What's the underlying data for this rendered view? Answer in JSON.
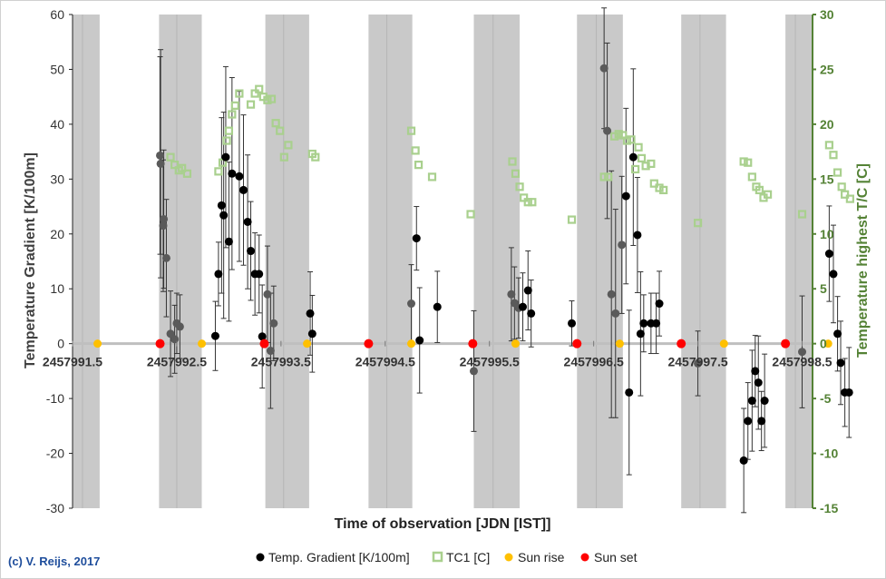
{
  "chart_data": {
    "type": "scatter",
    "title": "",
    "xlabel": "Time of observation [JDN [IST]]",
    "ylabel": "Temperature Gradient  [K/100m]",
    "y2label": "Temperature highest T/C [C]",
    "xlim": [
      2457991.5,
      2457998.6
    ],
    "ylim": [
      -30,
      60
    ],
    "y2lim": [
      -15,
      30
    ],
    "x_ticks": [
      2457991.5,
      2457992.5,
      2457993.5,
      2457994.5,
      2457995.5,
      2457996.5,
      2457997.5,
      2457998.5
    ],
    "x_tick_labels": [
      "2457991.5",
      "2457992.5",
      "2457993.5",
      "2457994.5",
      "2457995.5",
      "2457996.5",
      "2457997.5",
      "2457998.5"
    ],
    "y_ticks": [
      -30,
      -20,
      -10,
      0,
      10,
      20,
      30,
      40,
      50,
      60
    ],
    "y_tick_labels": [
      "-30",
      "-20",
      "-10",
      "0",
      "10",
      "20",
      "30",
      "40",
      "50",
      "60"
    ],
    "y2_ticks": [
      -15,
      -10,
      -5,
      0,
      5,
      10,
      15,
      20,
      25,
      30
    ],
    "y2_tick_labels": [
      "-15",
      "-10",
      "-5",
      "0",
      "5",
      "10",
      "15",
      "20",
      "25",
      "30"
    ],
    "night_bands": [
      [
        2457991.5,
        2457991.76
      ],
      [
        2457992.33,
        2457992.74
      ],
      [
        2457993.35,
        2457993.77
      ],
      [
        2457994.34,
        2457994.76
      ],
      [
        2457995.35,
        2457995.79
      ],
      [
        2457996.34,
        2457996.78
      ],
      [
        2457997.34,
        2457997.77
      ],
      [
        2457998.34,
        2457998.6
      ]
    ],
    "series": [
      {
        "name": "Temp. Gradient [K/100m]",
        "points": [
          {
            "x": 2457992.34,
            "y": 34.3,
            "err": 18
          },
          {
            "x": 2457992.345,
            "y": 32.8,
            "err": 20.8
          },
          {
            "x": 2457992.375,
            "y": 22.7,
            "err": 12.6
          },
          {
            "x": 2457992.37,
            "y": 21.5,
            "err": 12
          },
          {
            "x": 2457992.4,
            "y": 15.6,
            "err": 10.7
          },
          {
            "x": 2457992.44,
            "y": 1.8,
            "err": 7.8
          },
          {
            "x": 2457992.48,
            "y": 0.8,
            "err": 6.2
          },
          {
            "x": 2457992.5,
            "y": 3.7,
            "err": 5.5
          },
          {
            "x": 2457992.53,
            "y": 3.1,
            "err": 5.8
          },
          {
            "x": 2457992.87,
            "y": 1.4,
            "err": 6.3
          },
          {
            "x": 2457992.9,
            "y": 12.7,
            "err": 5.8
          },
          {
            "x": 2457992.93,
            "y": 25.2,
            "err": 16
          },
          {
            "x": 2457992.95,
            "y": 23.4,
            "err": 18.8
          },
          {
            "x": 2457992.97,
            "y": 34,
            "err": 16.5
          },
          {
            "x": 2457993.0,
            "y": 18.6,
            "err": 14.5
          },
          {
            "x": 2457993.03,
            "y": 31,
            "err": 17.5
          },
          {
            "x": 2457993.1,
            "y": 30.5,
            "err": 15.5
          },
          {
            "x": 2457993.14,
            "y": 28,
            "err": 13.7
          },
          {
            "x": 2457993.18,
            "y": 22.2,
            "err": 12.2
          },
          {
            "x": 2457993.21,
            "y": 16.9,
            "err": 9
          },
          {
            "x": 2457993.25,
            "y": 12.7,
            "err": 7.5
          },
          {
            "x": 2457993.29,
            "y": 12.7,
            "err": 7.1
          },
          {
            "x": 2457993.32,
            "y": 1.3,
            "err": 9.4
          },
          {
            "x": 2457993.37,
            "y": 9,
            "err": 8.8
          },
          {
            "x": 2457993.4,
            "y": -1.3,
            "err": 10.5
          },
          {
            "x": 2457993.43,
            "y": 3.7,
            "err": 6.8
          },
          {
            "x": 2457993.78,
            "y": 5.5,
            "err": 7.6
          },
          {
            "x": 2457993.8,
            "y": 1.8,
            "err": 7
          },
          {
            "x": 2457994.75,
            "y": 7.3,
            "err": 7.1
          },
          {
            "x": 2457994.8,
            "y": 19.2,
            "err": 5.8
          },
          {
            "x": 2457994.83,
            "y": 0.6,
            "err": 9.6
          },
          {
            "x": 2457995.0,
            "y": 6.7,
            "err": 6.5
          },
          {
            "x": 2457995.35,
            "y": -5,
            "err": 11
          },
          {
            "x": 2457995.71,
            "y": 9,
            "err": 8.5
          },
          {
            "x": 2457995.74,
            "y": 7.4,
            "err": 6.6
          },
          {
            "x": 2457995.78,
            "y": 6.5,
            "err": 5.5
          },
          {
            "x": 2457995.82,
            "y": 6.7,
            "err": 6.2
          },
          {
            "x": 2457995.87,
            "y": 9.7,
            "err": 7.2
          },
          {
            "x": 2457995.9,
            "y": 5.5,
            "err": 6.1
          },
          {
            "x": 2457996.29,
            "y": 3.7,
            "err": 4.1
          },
          {
            "x": 2457996.6,
            "y": 50.2,
            "err": 11
          },
          {
            "x": 2457996.63,
            "y": 38.8,
            "err": 16
          },
          {
            "x": 2457996.67,
            "y": 9,
            "err": 22.5
          },
          {
            "x": 2457996.71,
            "y": 5.5,
            "err": 19
          },
          {
            "x": 2457996.77,
            "y": 18,
            "err": 12.5
          },
          {
            "x": 2457996.81,
            "y": 26.9,
            "err": 16
          },
          {
            "x": 2457996.84,
            "y": -8.9,
            "err": 15
          },
          {
            "x": 2457996.88,
            "y": 34,
            "err": 16.1
          },
          {
            "x": 2457996.92,
            "y": 19.8,
            "err": 10.5
          },
          {
            "x": 2457996.95,
            "y": 1.8,
            "err": 11.3
          },
          {
            "x": 2457996.98,
            "y": 3.7,
            "err": 5.2
          },
          {
            "x": 2457997.05,
            "y": 3.7,
            "err": 5.5
          },
          {
            "x": 2457997.1,
            "y": 3.7,
            "err": 5.5
          },
          {
            "x": 2457997.13,
            "y": 7.3,
            "err": 5.9
          },
          {
            "x": 2457997.5,
            "y": -3.6,
            "err": 5.9
          },
          {
            "x": 2457997.94,
            "y": -21.3,
            "err": 9.5
          },
          {
            "x": 2457997.98,
            "y": -14.1,
            "err": 7
          },
          {
            "x": 2457998.02,
            "y": -10.4,
            "err": 9.2
          },
          {
            "x": 2457998.05,
            "y": -5,
            "err": 6.5
          },
          {
            "x": 2457998.08,
            "y": -7.1,
            "err": 8.5
          },
          {
            "x": 2457998.11,
            "y": -14.1,
            "err": 5.4
          },
          {
            "x": 2457998.14,
            "y": -10.4,
            "err": 8.5
          },
          {
            "x": 2457998.5,
            "y": -1.5,
            "err": 10.2
          },
          {
            "x": 2457998.76,
            "y": 16.4,
            "err": 8.7
          },
          {
            "x": 2457998.8,
            "y": 12.7,
            "err": 8.9
          },
          {
            "x": 2457998.84,
            "y": 1.8,
            "err": 6.8
          },
          {
            "x": 2457998.87,
            "y": -3.5,
            "err": 7.6
          },
          {
            "x": 2457998.91,
            "y": -8.9,
            "err": 6.2
          },
          {
            "x": 2457998.95,
            "y": -8.9,
            "err": 8.2
          }
        ]
      },
      {
        "name": "TC1 [C]",
        "axis": "y2",
        "points": [
          {
            "x": 2457992.44,
            "y": 17
          },
          {
            "x": 2457992.48,
            "y": 16.3
          },
          {
            "x": 2457992.52,
            "y": 15.8
          },
          {
            "x": 2457992.55,
            "y": 16
          },
          {
            "x": 2457992.6,
            "y": 15.5
          },
          {
            "x": 2457992.9,
            "y": 15.7
          },
          {
            "x": 2457992.94,
            "y": 16.5
          },
          {
            "x": 2457992.98,
            "y": 18.5
          },
          {
            "x": 2457993.0,
            "y": 19.4
          },
          {
            "x": 2457993.03,
            "y": 20.9
          },
          {
            "x": 2457993.06,
            "y": 21.7
          },
          {
            "x": 2457993.1,
            "y": 22.8
          },
          {
            "x": 2457993.21,
            "y": 21.8
          },
          {
            "x": 2457993.25,
            "y": 22.8
          },
          {
            "x": 2457993.29,
            "y": 23.2
          },
          {
            "x": 2457993.33,
            "y": 22.5
          },
          {
            "x": 2457993.37,
            "y": 22.2
          },
          {
            "x": 2457993.41,
            "y": 22.3
          },
          {
            "x": 2457993.45,
            "y": 20.1
          },
          {
            "x": 2457993.49,
            "y": 19.4
          },
          {
            "x": 2457993.53,
            "y": 17
          },
          {
            "x": 2457993.57,
            "y": 18.1
          },
          {
            "x": 2457993.8,
            "y": 17.3
          },
          {
            "x": 2457993.83,
            "y": 17
          },
          {
            "x": 2457994.75,
            "y": 19.4
          },
          {
            "x": 2457994.79,
            "y": 17.6
          },
          {
            "x": 2457994.82,
            "y": 16.3
          },
          {
            "x": 2457994.95,
            "y": 15.2
          },
          {
            "x": 2457995.32,
            "y": 11.8
          },
          {
            "x": 2457995.72,
            "y": 16.6
          },
          {
            "x": 2457995.75,
            "y": 15.5
          },
          {
            "x": 2457995.79,
            "y": 14.3
          },
          {
            "x": 2457995.83,
            "y": 13.3
          },
          {
            "x": 2457995.87,
            "y": 12.9
          },
          {
            "x": 2457995.91,
            "y": 12.9
          },
          {
            "x": 2457996.29,
            "y": 11.3
          },
          {
            "x": 2457996.6,
            "y": 15.2
          },
          {
            "x": 2457996.64,
            "y": 15.2
          },
          {
            "x": 2457996.7,
            "y": 18.9
          },
          {
            "x": 2457996.74,
            "y": 19.1
          },
          {
            "x": 2457996.78,
            "y": 19
          },
          {
            "x": 2457996.82,
            "y": 18.5
          },
          {
            "x": 2457996.86,
            "y": 18.6
          },
          {
            "x": 2457996.9,
            "y": 15.9
          },
          {
            "x": 2457996.93,
            "y": 17.9
          },
          {
            "x": 2457996.96,
            "y": 16.9
          },
          {
            "x": 2457997.0,
            "y": 16.2
          },
          {
            "x": 2457997.05,
            "y": 16.4
          },
          {
            "x": 2457997.08,
            "y": 14.6
          },
          {
            "x": 2457997.13,
            "y": 14.2
          },
          {
            "x": 2457997.17,
            "y": 14
          },
          {
            "x": 2457997.5,
            "y": 11
          },
          {
            "x": 2457997.94,
            "y": 16.6
          },
          {
            "x": 2457997.98,
            "y": 16.5
          },
          {
            "x": 2457998.02,
            "y": 15.2
          },
          {
            "x": 2457998.06,
            "y": 14.3
          },
          {
            "x": 2457998.09,
            "y": 14
          },
          {
            "x": 2457998.13,
            "y": 13.3
          },
          {
            "x": 2457998.17,
            "y": 13.6
          },
          {
            "x": 2457998.5,
            "y": 11.8
          },
          {
            "x": 2457998.76,
            "y": 18.1
          },
          {
            "x": 2457998.8,
            "y": 17.2
          },
          {
            "x": 2457998.84,
            "y": 15.6
          },
          {
            "x": 2457998.88,
            "y": 14.3
          },
          {
            "x": 2457998.91,
            "y": 13.6
          },
          {
            "x": 2457998.96,
            "y": 13.2
          }
        ]
      },
      {
        "name": "Sun rise",
        "points": [
          {
            "x": 2457991.74,
            "y": 0
          },
          {
            "x": 2457992.74,
            "y": 0
          },
          {
            "x": 2457993.75,
            "y": 0
          },
          {
            "x": 2457994.75,
            "y": 0
          },
          {
            "x": 2457995.75,
            "y": 0
          },
          {
            "x": 2457996.75,
            "y": 0
          },
          {
            "x": 2457997.75,
            "y": 0
          },
          {
            "x": 2457998.75,
            "y": 0
          }
        ]
      },
      {
        "name": "Sun set",
        "points": [
          {
            "x": 2457992.34,
            "y": 0
          },
          {
            "x": 2457993.34,
            "y": 0
          },
          {
            "x": 2457994.34,
            "y": 0
          },
          {
            "x": 2457995.34,
            "y": 0
          },
          {
            "x": 2457996.34,
            "y": 0
          },
          {
            "x": 2457997.34,
            "y": 0
          },
          {
            "x": 2457998.34,
            "y": 0
          }
        ]
      }
    ],
    "legend": [
      {
        "label": "Temp. Gradient [K/100m]",
        "marker": "dot",
        "color": "#000000"
      },
      {
        "label": "TC1 [C]",
        "marker": "square-open",
        "color": "#a9d08e"
      },
      {
        "label": "Sun rise",
        "marker": "dot",
        "color": "#ffc000"
      },
      {
        "label": "Sun set",
        "marker": "dot",
        "color": "#ff0000"
      }
    ],
    "legend_position": "bottom",
    "colors": {
      "night_band": "#c9c9c9",
      "gradient_day": "#000000",
      "gradient_night": "#5a5a5a",
      "tc1": "#a9d08e",
      "sunrise": "#ffc000",
      "sunset": "#ff0000",
      "y2_axis": "#548235",
      "zero_line": "#bfbfbf"
    }
  },
  "copyright": "(c) V. Reijs, 2017"
}
